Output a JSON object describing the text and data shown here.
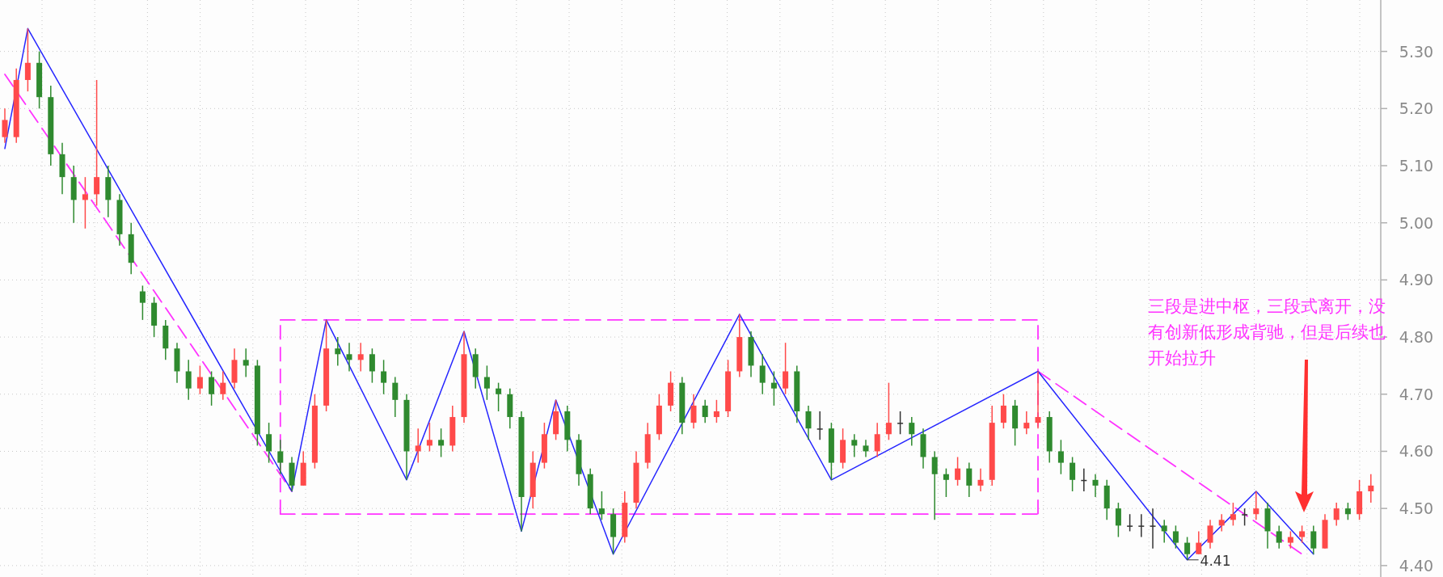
{
  "chart_data": {
    "type": "candlestick",
    "categories": [
      null,
      null,
      null,
      null,
      null,
      null,
      null,
      null,
      null,
      null,
      null,
      null,
      null,
      null,
      null,
      null,
      null,
      null,
      null,
      null,
      null,
      null,
      null,
      null,
      null,
      null,
      null,
      null,
      null,
      null,
      null,
      null,
      null,
      null,
      null,
      null,
      null,
      null,
      null,
      null,
      null,
      null,
      null,
      null,
      null,
      null,
      null,
      null,
      null,
      null,
      null,
      null,
      null,
      null,
      null,
      null,
      null,
      null,
      null,
      null,
      null,
      null,
      null,
      null,
      null,
      null,
      null,
      null,
      null,
      null,
      null,
      null,
      null,
      null,
      null,
      null,
      null,
      null,
      null,
      null,
      null,
      null,
      null,
      null,
      null,
      null,
      null,
      null,
      null,
      null,
      null,
      null,
      null,
      null,
      null,
      null,
      null,
      null,
      null,
      null,
      null,
      null,
      null,
      null,
      null,
      null,
      null,
      null,
      null,
      null,
      null,
      null,
      null,
      null,
      null,
      null,
      null,
      null,
      null,
      null
    ],
    "ohlc": [
      [
        5.15,
        5.2,
        5.14,
        5.18
      ],
      [
        5.15,
        5.27,
        5.14,
        5.25
      ],
      [
        5.25,
        5.34,
        5.23,
        5.28
      ],
      [
        5.28,
        5.3,
        5.2,
        5.22
      ],
      [
        5.22,
        5.24,
        5.1,
        5.12
      ],
      [
        5.12,
        5.14,
        5.05,
        5.08
      ],
      [
        5.08,
        5.1,
        5.0,
        5.04
      ],
      [
        5.04,
        5.08,
        4.99,
        5.05
      ],
      [
        5.05,
        5.25,
        5.03,
        5.08
      ],
      [
        5.08,
        5.1,
        5.01,
        5.04
      ],
      [
        5.04,
        5.05,
        4.96,
        4.98
      ],
      [
        4.98,
        5.0,
        4.91,
        4.93
      ],
      [
        4.88,
        4.89,
        4.83,
        4.86
      ],
      [
        4.86,
        4.87,
        4.8,
        4.82
      ],
      [
        4.82,
        4.83,
        4.76,
        4.78
      ],
      [
        4.78,
        4.79,
        4.72,
        4.74
      ],
      [
        4.74,
        4.76,
        4.69,
        4.71
      ],
      [
        4.71,
        4.75,
        4.7,
        4.73
      ],
      [
        4.73,
        4.74,
        4.68,
        4.7
      ],
      [
        4.7,
        4.74,
        4.69,
        4.72
      ],
      [
        4.72,
        4.78,
        4.71,
        4.76
      ],
      [
        4.76,
        4.78,
        4.73,
        4.75
      ],
      [
        4.75,
        4.76,
        4.61,
        4.63
      ],
      [
        4.63,
        4.65,
        4.58,
        4.6
      ],
      [
        4.6,
        4.62,
        4.56,
        4.58
      ],
      [
        4.58,
        4.59,
        4.53,
        4.54
      ],
      [
        4.54,
        4.6,
        4.54,
        4.58
      ],
      [
        4.58,
        4.7,
        4.57,
        4.68
      ],
      [
        4.68,
        4.83,
        4.67,
        4.78
      ],
      [
        4.78,
        4.8,
        4.75,
        4.77
      ],
      [
        4.77,
        4.79,
        4.74,
        4.76
      ],
      [
        4.76,
        4.79,
        4.74,
        4.77
      ],
      [
        4.77,
        4.78,
        4.72,
        4.74
      ],
      [
        4.74,
        4.76,
        4.7,
        4.72
      ],
      [
        4.72,
        4.73,
        4.66,
        4.69
      ],
      [
        4.69,
        4.7,
        4.55,
        4.6
      ],
      [
        4.6,
        4.64,
        4.58,
        4.61
      ],
      [
        4.61,
        4.65,
        4.6,
        4.62
      ],
      [
        4.62,
        4.64,
        4.59,
        4.61
      ],
      [
        4.61,
        4.68,
        4.6,
        4.66
      ],
      [
        4.66,
        4.81,
        4.65,
        4.77
      ],
      [
        4.77,
        4.78,
        4.71,
        4.73
      ],
      [
        4.73,
        4.75,
        4.69,
        4.71
      ],
      [
        4.71,
        4.72,
        4.67,
        4.7
      ],
      [
        4.7,
        4.71,
        4.64,
        4.66
      ],
      [
        4.66,
        4.67,
        4.46,
        4.52
      ],
      [
        4.52,
        4.6,
        4.5,
        4.58
      ],
      [
        4.58,
        4.65,
        4.57,
        4.63
      ],
      [
        4.63,
        4.69,
        4.62,
        4.67
      ],
      [
        4.67,
        4.68,
        4.6,
        4.62
      ],
      [
        4.62,
        4.63,
        4.54,
        4.56
      ],
      [
        4.56,
        4.57,
        4.49,
        4.5
      ],
      [
        4.5,
        4.53,
        4.48,
        4.49
      ],
      [
        4.49,
        4.5,
        4.42,
        4.45
      ],
      [
        4.45,
        4.53,
        4.44,
        4.51
      ],
      [
        4.51,
        4.6,
        4.5,
        4.58
      ],
      [
        4.58,
        4.65,
        4.57,
        4.63
      ],
      [
        4.63,
        4.7,
        4.62,
        4.68
      ],
      [
        4.68,
        4.74,
        4.67,
        4.72
      ],
      [
        4.72,
        4.73,
        4.63,
        4.65
      ],
      [
        4.65,
        4.7,
        4.64,
        4.68
      ],
      [
        4.68,
        4.69,
        4.65,
        4.66
      ],
      [
        4.66,
        4.69,
        4.65,
        4.67
      ],
      [
        4.67,
        4.76,
        4.66,
        4.74
      ],
      [
        4.74,
        4.84,
        4.73,
        4.8
      ],
      [
        4.8,
        4.81,
        4.73,
        4.75
      ],
      [
        4.75,
        4.77,
        4.7,
        4.72
      ],
      [
        4.72,
        4.74,
        4.68,
        4.71
      ],
      [
        4.71,
        4.79,
        4.7,
        4.74
      ],
      [
        4.74,
        4.75,
        4.65,
        4.67
      ],
      [
        4.67,
        4.68,
        4.62,
        4.64
      ],
      [
        4.64,
        4.67,
        4.62,
        4.64
      ],
      [
        4.64,
        4.65,
        4.55,
        4.58
      ],
      [
        4.58,
        4.64,
        4.57,
        4.62
      ],
      [
        4.62,
        4.63,
        4.59,
        4.61
      ],
      [
        4.61,
        4.62,
        4.59,
        4.6
      ],
      [
        4.6,
        4.65,
        4.59,
        4.63
      ],
      [
        4.63,
        4.72,
        4.62,
        4.65
      ],
      [
        4.65,
        4.67,
        4.63,
        4.65
      ],
      [
        4.65,
        4.66,
        4.61,
        4.63
      ],
      [
        4.63,
        4.64,
        4.57,
        4.59
      ],
      [
        4.59,
        4.6,
        4.48,
        4.56
      ],
      [
        4.56,
        4.57,
        4.52,
        4.55
      ],
      [
        4.55,
        4.59,
        4.54,
        4.57
      ],
      [
        4.57,
        4.58,
        4.52,
        4.54
      ],
      [
        4.54,
        4.57,
        4.53,
        4.55
      ],
      [
        4.55,
        4.68,
        4.54,
        4.65
      ],
      [
        4.65,
        4.7,
        4.64,
        4.68
      ],
      [
        4.68,
        4.69,
        4.61,
        4.64
      ],
      [
        4.64,
        4.67,
        4.63,
        4.65
      ],
      [
        4.65,
        4.74,
        4.64,
        4.66
      ],
      [
        4.66,
        4.67,
        4.58,
        4.6
      ],
      [
        4.6,
        4.62,
        4.56,
        4.58
      ],
      [
        4.58,
        4.59,
        4.53,
        4.55
      ],
      [
        4.55,
        4.57,
        4.53,
        4.55
      ],
      [
        4.55,
        4.56,
        4.52,
        4.54
      ],
      [
        4.54,
        4.55,
        4.48,
        4.5
      ],
      [
        4.5,
        4.51,
        4.45,
        4.47
      ],
      [
        4.47,
        4.49,
        4.46,
        4.47
      ],
      [
        4.47,
        4.49,
        4.45,
        4.47
      ],
      [
        4.47,
        4.5,
        4.43,
        4.47
      ],
      [
        4.47,
        4.48,
        4.44,
        4.46
      ],
      [
        4.46,
        4.47,
        4.43,
        4.44
      ],
      [
        4.44,
        4.45,
        4.41,
        4.42
      ],
      [
        4.42,
        4.46,
        4.42,
        4.44
      ],
      [
        4.44,
        4.48,
        4.43,
        4.47
      ],
      [
        4.47,
        4.49,
        4.46,
        4.48
      ],
      [
        4.48,
        4.51,
        4.47,
        4.49
      ],
      [
        4.49,
        4.5,
        4.47,
        4.49
      ],
      [
        4.49,
        4.53,
        4.48,
        4.5
      ],
      [
        4.5,
        4.51,
        4.43,
        4.46
      ],
      [
        4.46,
        4.47,
        4.43,
        4.44
      ],
      [
        4.44,
        4.46,
        4.43,
        4.45
      ],
      [
        4.45,
        4.47,
        4.44,
        4.46
      ],
      [
        4.46,
        4.47,
        4.42,
        4.43
      ],
      [
        4.43,
        4.49,
        4.43,
        4.48
      ],
      [
        4.48,
        4.51,
        4.47,
        4.5
      ],
      [
        4.5,
        4.51,
        4.48,
        4.49
      ],
      [
        4.49,
        4.55,
        4.48,
        4.53
      ],
      [
        4.53,
        4.56,
        4.51,
        4.54
      ]
    ],
    "series": [
      {
        "type": "line",
        "color": "#2626ff",
        "line_style": "solid",
        "values": [
          5.13,
          null,
          5.34,
          null,
          null,
          null,
          null,
          null,
          null,
          null,
          null,
          null,
          null,
          null,
          null,
          null,
          null,
          null,
          null,
          null,
          null,
          null,
          null,
          null,
          null,
          4.53,
          null,
          null,
          4.83,
          null,
          null,
          null,
          null,
          null,
          null,
          4.55,
          null,
          null,
          null,
          null,
          4.81,
          null,
          null,
          null,
          null,
          4.46,
          null,
          null,
          4.69,
          null,
          null,
          null,
          null,
          4.42,
          null,
          null,
          null,
          null,
          null,
          null,
          null,
          null,
          null,
          null,
          4.84,
          null,
          null,
          null,
          null,
          null,
          null,
          null,
          4.55,
          null,
          null,
          null,
          null,
          null,
          null,
          null,
          null,
          null,
          null,
          null,
          null,
          null,
          null,
          null,
          null,
          null,
          4.74,
          null,
          null,
          null,
          null,
          null,
          null,
          null,
          null,
          null,
          null,
          null,
          null,
          4.41,
          null,
          null,
          null,
          null,
          null,
          4.53,
          null,
          null,
          null,
          null,
          4.42,
          null,
          null,
          null,
          null,
          null
        ]
      },
      {
        "type": "line",
        "color": "#ff33ff",
        "line_style": "dashed",
        "values": [
          5.26,
          null,
          null,
          null,
          null,
          null,
          null,
          null,
          null,
          null,
          null,
          null,
          null,
          null,
          null,
          null,
          null,
          null,
          null,
          null,
          null,
          null,
          null,
          null,
          null,
          4.53,
          null,
          null,
          null,
          null,
          null,
          null,
          null,
          null,
          null,
          null,
          null,
          null,
          null,
          null,
          null,
          null,
          null,
          null,
          null,
          null,
          null,
          null,
          null,
          null,
          null,
          null,
          null,
          null,
          null,
          null,
          null,
          null,
          null,
          null,
          null,
          null,
          null,
          null,
          null,
          null,
          null,
          null,
          null,
          null,
          null,
          null,
          null,
          null,
          null,
          null,
          null,
          null,
          null,
          null,
          null,
          null,
          null,
          null,
          null,
          null,
          null,
          null,
          null,
          null,
          null,
          null,
          null,
          null,
          null,
          null,
          null,
          null,
          null,
          null,
          null,
          null,
          null,
          null,
          null,
          null,
          null,
          null,
          null,
          null,
          null,
          null,
          null,
          null,
          null,
          null,
          null,
          null,
          null,
          null
        ]
      },
      {
        "type": "line",
        "color": "#ff33ff",
        "line_style": "dashed",
        "errors": [
          null,
          null,
          null,
          null,
          null,
          null,
          null,
          null,
          null,
          null,
          null,
          null,
          null,
          null,
          null,
          null,
          null,
          null,
          null,
          null,
          null,
          null,
          null,
          null,
          [
            4.49,
            4.83
          ],
          null,
          null,
          null,
          null,
          null,
          null,
          null,
          null,
          null,
          null,
          null,
          null,
          null,
          null,
          null,
          null,
          null,
          null,
          null,
          null,
          null,
          null,
          null,
          null,
          null,
          null,
          null,
          null,
          null,
          null,
          null,
          null,
          null,
          null,
          null,
          null,
          null,
          null,
          null,
          null,
          null,
          null,
          null,
          null,
          null,
          null,
          null,
          null,
          null,
          null,
          null,
          null,
          null,
          null,
          null,
          null,
          null,
          null,
          null,
          null,
          null,
          null,
          null,
          null,
          null,
          [
            4.49,
            4.83
          ],
          null,
          null,
          null,
          null,
          null,
          null,
          null,
          null,
          null,
          null,
          null,
          null,
          null,
          null,
          null,
          null,
          null,
          null,
          null,
          null,
          null,
          null,
          null,
          null,
          null,
          null,
          null,
          null,
          null
        ],
        "values": [
          null,
          null,
          null,
          null,
          null,
          null,
          null,
          null,
          null,
          null,
          null,
          null,
          null,
          null,
          null,
          null,
          null,
          null,
          null,
          null,
          null,
          null,
          null,
          null,
          4.83,
          null,
          null,
          null,
          null,
          null,
          null,
          null,
          null,
          null,
          null,
          null,
          null,
          null,
          null,
          null,
          null,
          null,
          null,
          null,
          null,
          null,
          null,
          null,
          null,
          null,
          null,
          null,
          null,
          null,
          null,
          null,
          null,
          null,
          null,
          null,
          null,
          null,
          null,
          null,
          null,
          null,
          null,
          null,
          null,
          null,
          null,
          null,
          null,
          null,
          null,
          null,
          null,
          null,
          null,
          null,
          null,
          null,
          null,
          null,
          null,
          null,
          null,
          null,
          null,
          null,
          4.83,
          null,
          null,
          null,
          null,
          null,
          null,
          null,
          null,
          null,
          null,
          null,
          null,
          null,
          null,
          null,
          null,
          null,
          null,
          null,
          null,
          null,
          null,
          null,
          null,
          null,
          null,
          null,
          null,
          null
        ]
      },
      {
        "type": "line",
        "color": "#ff33ff",
        "line_style": "dashed",
        "values": [
          null,
          null,
          null,
          null,
          null,
          null,
          null,
          null,
          null,
          null,
          null,
          null,
          null,
          null,
          null,
          null,
          null,
          null,
          null,
          null,
          null,
          null,
          null,
          null,
          4.49,
          null,
          null,
          null,
          null,
          null,
          null,
          null,
          null,
          null,
          null,
          null,
          null,
          null,
          null,
          null,
          null,
          null,
          null,
          null,
          null,
          null,
          null,
          null,
          null,
          null,
          null,
          null,
          null,
          null,
          null,
          null,
          null,
          null,
          null,
          null,
          null,
          null,
          null,
          null,
          null,
          null,
          null,
          null,
          null,
          null,
          null,
          null,
          null,
          null,
          null,
          null,
          null,
          null,
          null,
          null,
          null,
          null,
          null,
          null,
          null,
          null,
          null,
          null,
          null,
          null,
          4.49,
          null,
          null,
          null,
          null,
          null,
          null,
          null,
          null,
          null,
          null,
          null,
          null,
          null,
          null,
          null,
          null,
          null,
          null,
          null,
          null,
          null,
          null,
          null,
          null,
          null,
          null,
          null,
          null,
          null
        ]
      },
      {
        "type": "line",
        "color": "#ff33ff",
        "line_style": "dashed",
        "values": [
          null,
          null,
          null,
          null,
          null,
          null,
          null,
          null,
          null,
          null,
          null,
          null,
          null,
          null,
          null,
          null,
          null,
          null,
          null,
          null,
          null,
          null,
          null,
          null,
          null,
          null,
          null,
          null,
          null,
          null,
          null,
          null,
          null,
          null,
          null,
          null,
          null,
          null,
          null,
          null,
          null,
          null,
          null,
          null,
          null,
          null,
          null,
          null,
          null,
          null,
          null,
          null,
          null,
          null,
          null,
          null,
          null,
          null,
          null,
          null,
          null,
          null,
          null,
          null,
          null,
          null,
          null,
          null,
          null,
          null,
          null,
          null,
          null,
          null,
          null,
          null,
          null,
          null,
          null,
          null,
          null,
          null,
          null,
          null,
          null,
          null,
          null,
          null,
          null,
          null,
          4.74,
          null,
          null,
          null,
          null,
          null,
          null,
          null,
          null,
          null,
          null,
          null,
          null,
          null,
          null,
          null,
          null,
          null,
          null,
          null,
          null,
          null,
          null,
          4.42,
          null,
          null,
          null,
          null,
          null,
          null
        ]
      }
    ],
    "ylim": [
      4.38,
      5.39
    ],
    "yticks": [
      {
        "value": 4.4,
        "label": "4.40"
      },
      {
        "value": 4.5,
        "label": "4.50"
      },
      {
        "value": 4.6,
        "label": "4.60"
      },
      {
        "value": 4.7,
        "label": "4.70"
      },
      {
        "value": 4.8,
        "label": "4.80"
      },
      {
        "value": 4.9,
        "label": "4.90"
      },
      {
        "value": 5.0,
        "label": "5.00"
      },
      {
        "value": 5.1,
        "label": "5.10"
      },
      {
        "value": 5.2,
        "label": "5.20"
      },
      {
        "value": 5.3,
        "label": "5.30"
      }
    ],
    "grid": true,
    "tick_labels": "y",
    "marker": "none",
    "annotations": [
      "三段是进中枢，三段式离开，没有创新低形成背驰，但是后续也开始拉升",
      "4.41"
    ]
  }
}
